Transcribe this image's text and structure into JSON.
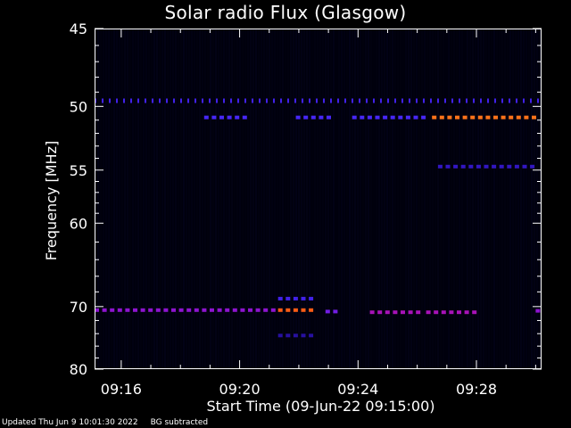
{
  "chart_data": {
    "type": "heatmap",
    "title": "Solar radio Flux (Glasgow)",
    "xlabel": "Start Time (09-Jun-22 09:15:00)",
    "ylabel": "Frequency [MHz]",
    "x_tick_labels": [
      "09:16",
      "09:20",
      "09:24",
      "09:28"
    ],
    "x_tick_minutes": [
      16,
      20,
      24,
      28
    ],
    "x_range_minutes": [
      15.1,
      30.2
    ],
    "y_tick_labels": [
      "45",
      "50",
      "55",
      "60",
      "70",
      "80"
    ],
    "y_tick_values": [
      45,
      50,
      55,
      60,
      70,
      80
    ],
    "y_range": [
      45,
      80
    ],
    "y_axis_inverted": true,
    "colormap": [
      "#000000",
      "#1a0a7a",
      "#3a1ad8",
      "#4a2aff",
      "#9a10c8",
      "#e01878",
      "#ff6010",
      "#ffa030"
    ],
    "emission_bands": [
      {
        "freq": 49.6,
        "t_start": 15.1,
        "t_end": 30.2,
        "intensity": 0.35,
        "dashed": true
      },
      {
        "freq": 50.8,
        "t_start": 18.8,
        "t_end": 20.2,
        "intensity": 0.4
      },
      {
        "freq": 50.8,
        "t_start": 21.9,
        "t_end": 23.2,
        "intensity": 0.4
      },
      {
        "freq": 50.8,
        "t_start": 23.8,
        "t_end": 26.4,
        "intensity": 0.4
      },
      {
        "freq": 50.8,
        "t_start": 26.5,
        "t_end": 30.0,
        "intensity": 0.9
      },
      {
        "freq": 54.7,
        "t_start": 26.7,
        "t_end": 30.0,
        "intensity": 0.25
      },
      {
        "freq": 68.9,
        "t_start": 21.3,
        "t_end": 22.5,
        "intensity": 0.35
      },
      {
        "freq": 70.5,
        "t_start": 15.1,
        "t_end": 21.2,
        "intensity": 0.55
      },
      {
        "freq": 70.5,
        "t_start": 21.3,
        "t_end": 22.6,
        "intensity": 0.85
      },
      {
        "freq": 70.7,
        "t_start": 22.9,
        "t_end": 23.4,
        "intensity": 0.5
      },
      {
        "freq": 70.8,
        "t_start": 24.4,
        "t_end": 26.0,
        "intensity": 0.6
      },
      {
        "freq": 70.8,
        "t_start": 26.3,
        "t_end": 28.0,
        "intensity": 0.6
      },
      {
        "freq": 70.6,
        "t_start": 30.0,
        "t_end": 30.2,
        "intensity": 0.55
      },
      {
        "freq": 74.3,
        "t_start": 21.3,
        "t_end": 22.6,
        "intensity": 0.2
      }
    ]
  },
  "footer": {
    "updated": "Updated Thu Jun  9 10:01:30 2022",
    "note": "BG subtracted"
  }
}
